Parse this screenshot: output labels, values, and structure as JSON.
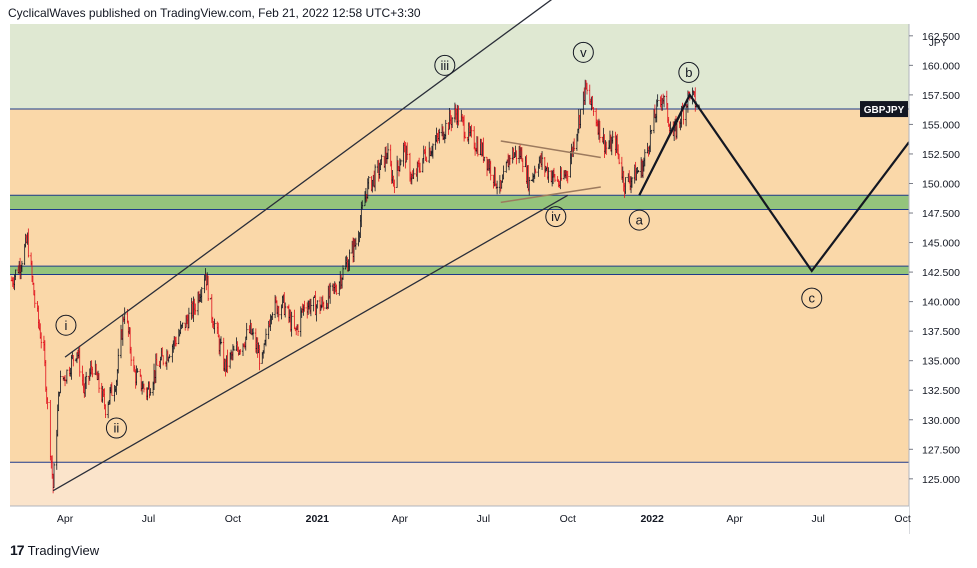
{
  "header": {
    "caption": "CyclicalWaves published on TradingView.com, Feb 21, 2022 12:58 UTC+3:30"
  },
  "footer": {
    "logo": "17",
    "brand": "TradingView"
  },
  "chart_data": {
    "type": "candlestick",
    "symbol": "GBPJPY",
    "currency": "JPY",
    "y_range": [
      122.7,
      163.5
    ],
    "x_range": [
      "2020-02-01",
      "2022-10-08"
    ],
    "y_ticks": [
      "162.500",
      "160.000",
      "157.500",
      "155.000",
      "152.500",
      "150.000",
      "147.500",
      "145.000",
      "142.500",
      "140.000",
      "137.500",
      "135.000",
      "132.500",
      "130.000",
      "127.500",
      "125.000"
    ],
    "x_ticks": [
      {
        "label": "Apr",
        "date": "2020-04-01",
        "bold": false
      },
      {
        "label": "Jul",
        "date": "2020-07-01",
        "bold": false
      },
      {
        "label": "Oct",
        "date": "2020-10-01",
        "bold": false
      },
      {
        "label": "2021",
        "date": "2021-01-01",
        "bold": true
      },
      {
        "label": "Apr",
        "date": "2021-04-01",
        "bold": false
      },
      {
        "label": "Jul",
        "date": "2021-07-01",
        "bold": false
      },
      {
        "label": "Oct",
        "date": "2021-10-01",
        "bold": false
      },
      {
        "label": "2022",
        "date": "2022-01-01",
        "bold": true
      },
      {
        "label": "Apr",
        "date": "2022-04-01",
        "bold": false
      },
      {
        "label": "Jul",
        "date": "2022-07-01",
        "bold": false
      },
      {
        "label": "Oct",
        "date": "2022-10-01",
        "bold": false
      }
    ],
    "last_price_label": "GBPJPY",
    "last_price": 156.3,
    "zones": [
      {
        "from": 156.3,
        "to": 163.5,
        "color": "#dfe8d2"
      },
      {
        "from": 122.7,
        "to": 156.3,
        "color": "#fad8a9"
      },
      {
        "from": 122.7,
        "to": 126.4,
        "color": "#fbe4cb"
      },
      {
        "from": 147.8,
        "to": 149.0,
        "color": "#94c47c"
      },
      {
        "from": 142.3,
        "to": 143.0,
        "color": "#94c47c"
      }
    ],
    "hlines": [
      156.3,
      149.0,
      147.8,
      143.0,
      142.3,
      126.4
    ],
    "price_path": [
      [
        "2020-02-03",
        141.8
      ],
      [
        "2020-02-12",
        143.2
      ],
      [
        "2020-02-20",
        145.2
      ],
      [
        "2020-02-28",
        140.0
      ],
      [
        "2020-03-09",
        135.6
      ],
      [
        "2020-03-19",
        124.3
      ],
      [
        "2020-03-26",
        133.0
      ],
      [
        "2020-04-03",
        134.0
      ],
      [
        "2020-04-14",
        136.0
      ],
      [
        "2020-04-22",
        132.4
      ],
      [
        "2020-05-01",
        134.6
      ],
      [
        "2020-05-15",
        131.1
      ],
      [
        "2020-05-27",
        133.5
      ],
      [
        "2020-06-05",
        139.5
      ],
      [
        "2020-06-15",
        134.0
      ],
      [
        "2020-06-29",
        132.3
      ],
      [
        "2020-07-10",
        134.5
      ],
      [
        "2020-07-22",
        135.7
      ],
      [
        "2020-08-05",
        137.5
      ],
      [
        "2020-08-20",
        139.5
      ],
      [
        "2020-09-01",
        142.5
      ],
      [
        "2020-09-08",
        139.0
      ],
      [
        "2020-09-22",
        134.5
      ],
      [
        "2020-10-01",
        135.5
      ],
      [
        "2020-10-20",
        137.5
      ],
      [
        "2020-11-02",
        134.8
      ],
      [
        "2020-11-12",
        139.5
      ],
      [
        "2020-11-25",
        139.8
      ],
      [
        "2020-12-08",
        137.3
      ],
      [
        "2020-12-18",
        139.8
      ],
      [
        "2021-01-05",
        139.6
      ],
      [
        "2021-01-20",
        141.0
      ],
      [
        "2021-02-02",
        143.2
      ],
      [
        "2021-02-12",
        145.0
      ],
      [
        "2021-02-24",
        149.5
      ],
      [
        "2021-03-08",
        151.0
      ],
      [
        "2021-03-18",
        152.5
      ],
      [
        "2021-03-25",
        150.2
      ],
      [
        "2021-04-05",
        153.0
      ],
      [
        "2021-04-15",
        150.2
      ],
      [
        "2021-04-28",
        152.5
      ],
      [
        "2021-05-10",
        153.5
      ],
      [
        "2021-05-25",
        155.3
      ],
      [
        "2021-06-02",
        156.0
      ],
      [
        "2021-06-15",
        154.0
      ],
      [
        "2021-06-28",
        153.0
      ],
      [
        "2021-07-08",
        151.5
      ],
      [
        "2021-07-20",
        149.3
      ],
      [
        "2021-07-30",
        152.5
      ],
      [
        "2021-08-12",
        152.5
      ],
      [
        "2021-08-20",
        150.0
      ],
      [
        "2021-08-30",
        152.0
      ],
      [
        "2021-09-10",
        151.0
      ],
      [
        "2021-09-22",
        150.0
      ],
      [
        "2021-10-01",
        151.2
      ],
      [
        "2021-10-12",
        155.0
      ],
      [
        "2021-10-20",
        158.0
      ],
      [
        "2021-11-01",
        155.5
      ],
      [
        "2021-11-12",
        153.0
      ],
      [
        "2021-11-22",
        153.5
      ],
      [
        "2021-12-02",
        150.0
      ],
      [
        "2021-12-10",
        150.5
      ],
      [
        "2021-12-22",
        151.5
      ],
      [
        "2022-01-05",
        156.0
      ],
      [
        "2022-01-12",
        157.5
      ],
      [
        "2022-01-24",
        154.0
      ],
      [
        "2022-02-03",
        156.0
      ],
      [
        "2022-02-11",
        157.7
      ],
      [
        "2022-02-21",
        156.3
      ]
    ],
    "channel": [
      {
        "from": [
          "2020-03-19",
          124.0
        ],
        "to": [
          "2021-10-01",
          149.0
        ]
      },
      {
        "from": [
          "2020-04-01",
          135.3
        ],
        "to": [
          "2021-11-30",
          170.0
        ]
      }
    ],
    "triangle": [
      {
        "from": [
          "2021-07-20",
          153.6
        ],
        "to": [
          "2021-11-06",
          152.2
        ]
      },
      {
        "from": [
          "2021-07-20",
          148.4
        ],
        "to": [
          "2021-11-06",
          149.7
        ]
      }
    ],
    "projection": [
      [
        "2021-12-18",
        149.0
      ],
      [
        "2022-02-11",
        157.5
      ],
      [
        "2022-02-21",
        156.4
      ],
      [
        "2022-06-24",
        142.6
      ],
      [
        "2022-10-08",
        153.5
      ]
    ],
    "small_lines": [
      {
        "from": [
          "2021-12-18",
          149.0
        ],
        "to": [
          "2022-02-02",
          156.0
        ]
      }
    ],
    "wave_labels": [
      {
        "label": "i",
        "date": "2020-04-02",
        "price": 138.0
      },
      {
        "label": "ii",
        "date": "2020-05-27",
        "price": 129.3
      },
      {
        "label": "iii",
        "date": "2021-05-20",
        "price": 160.0
      },
      {
        "label": "iv",
        "date": "2021-09-18",
        "price": 147.2
      },
      {
        "label": "v",
        "date": "2021-10-18",
        "price": 161.1
      },
      {
        "label": "a",
        "date": "2021-12-18",
        "price": 146.9
      },
      {
        "label": "b",
        "date": "2022-02-10",
        "price": 159.4
      },
      {
        "label": "c",
        "date": "2022-06-24",
        "price": 140.3
      }
    ]
  }
}
